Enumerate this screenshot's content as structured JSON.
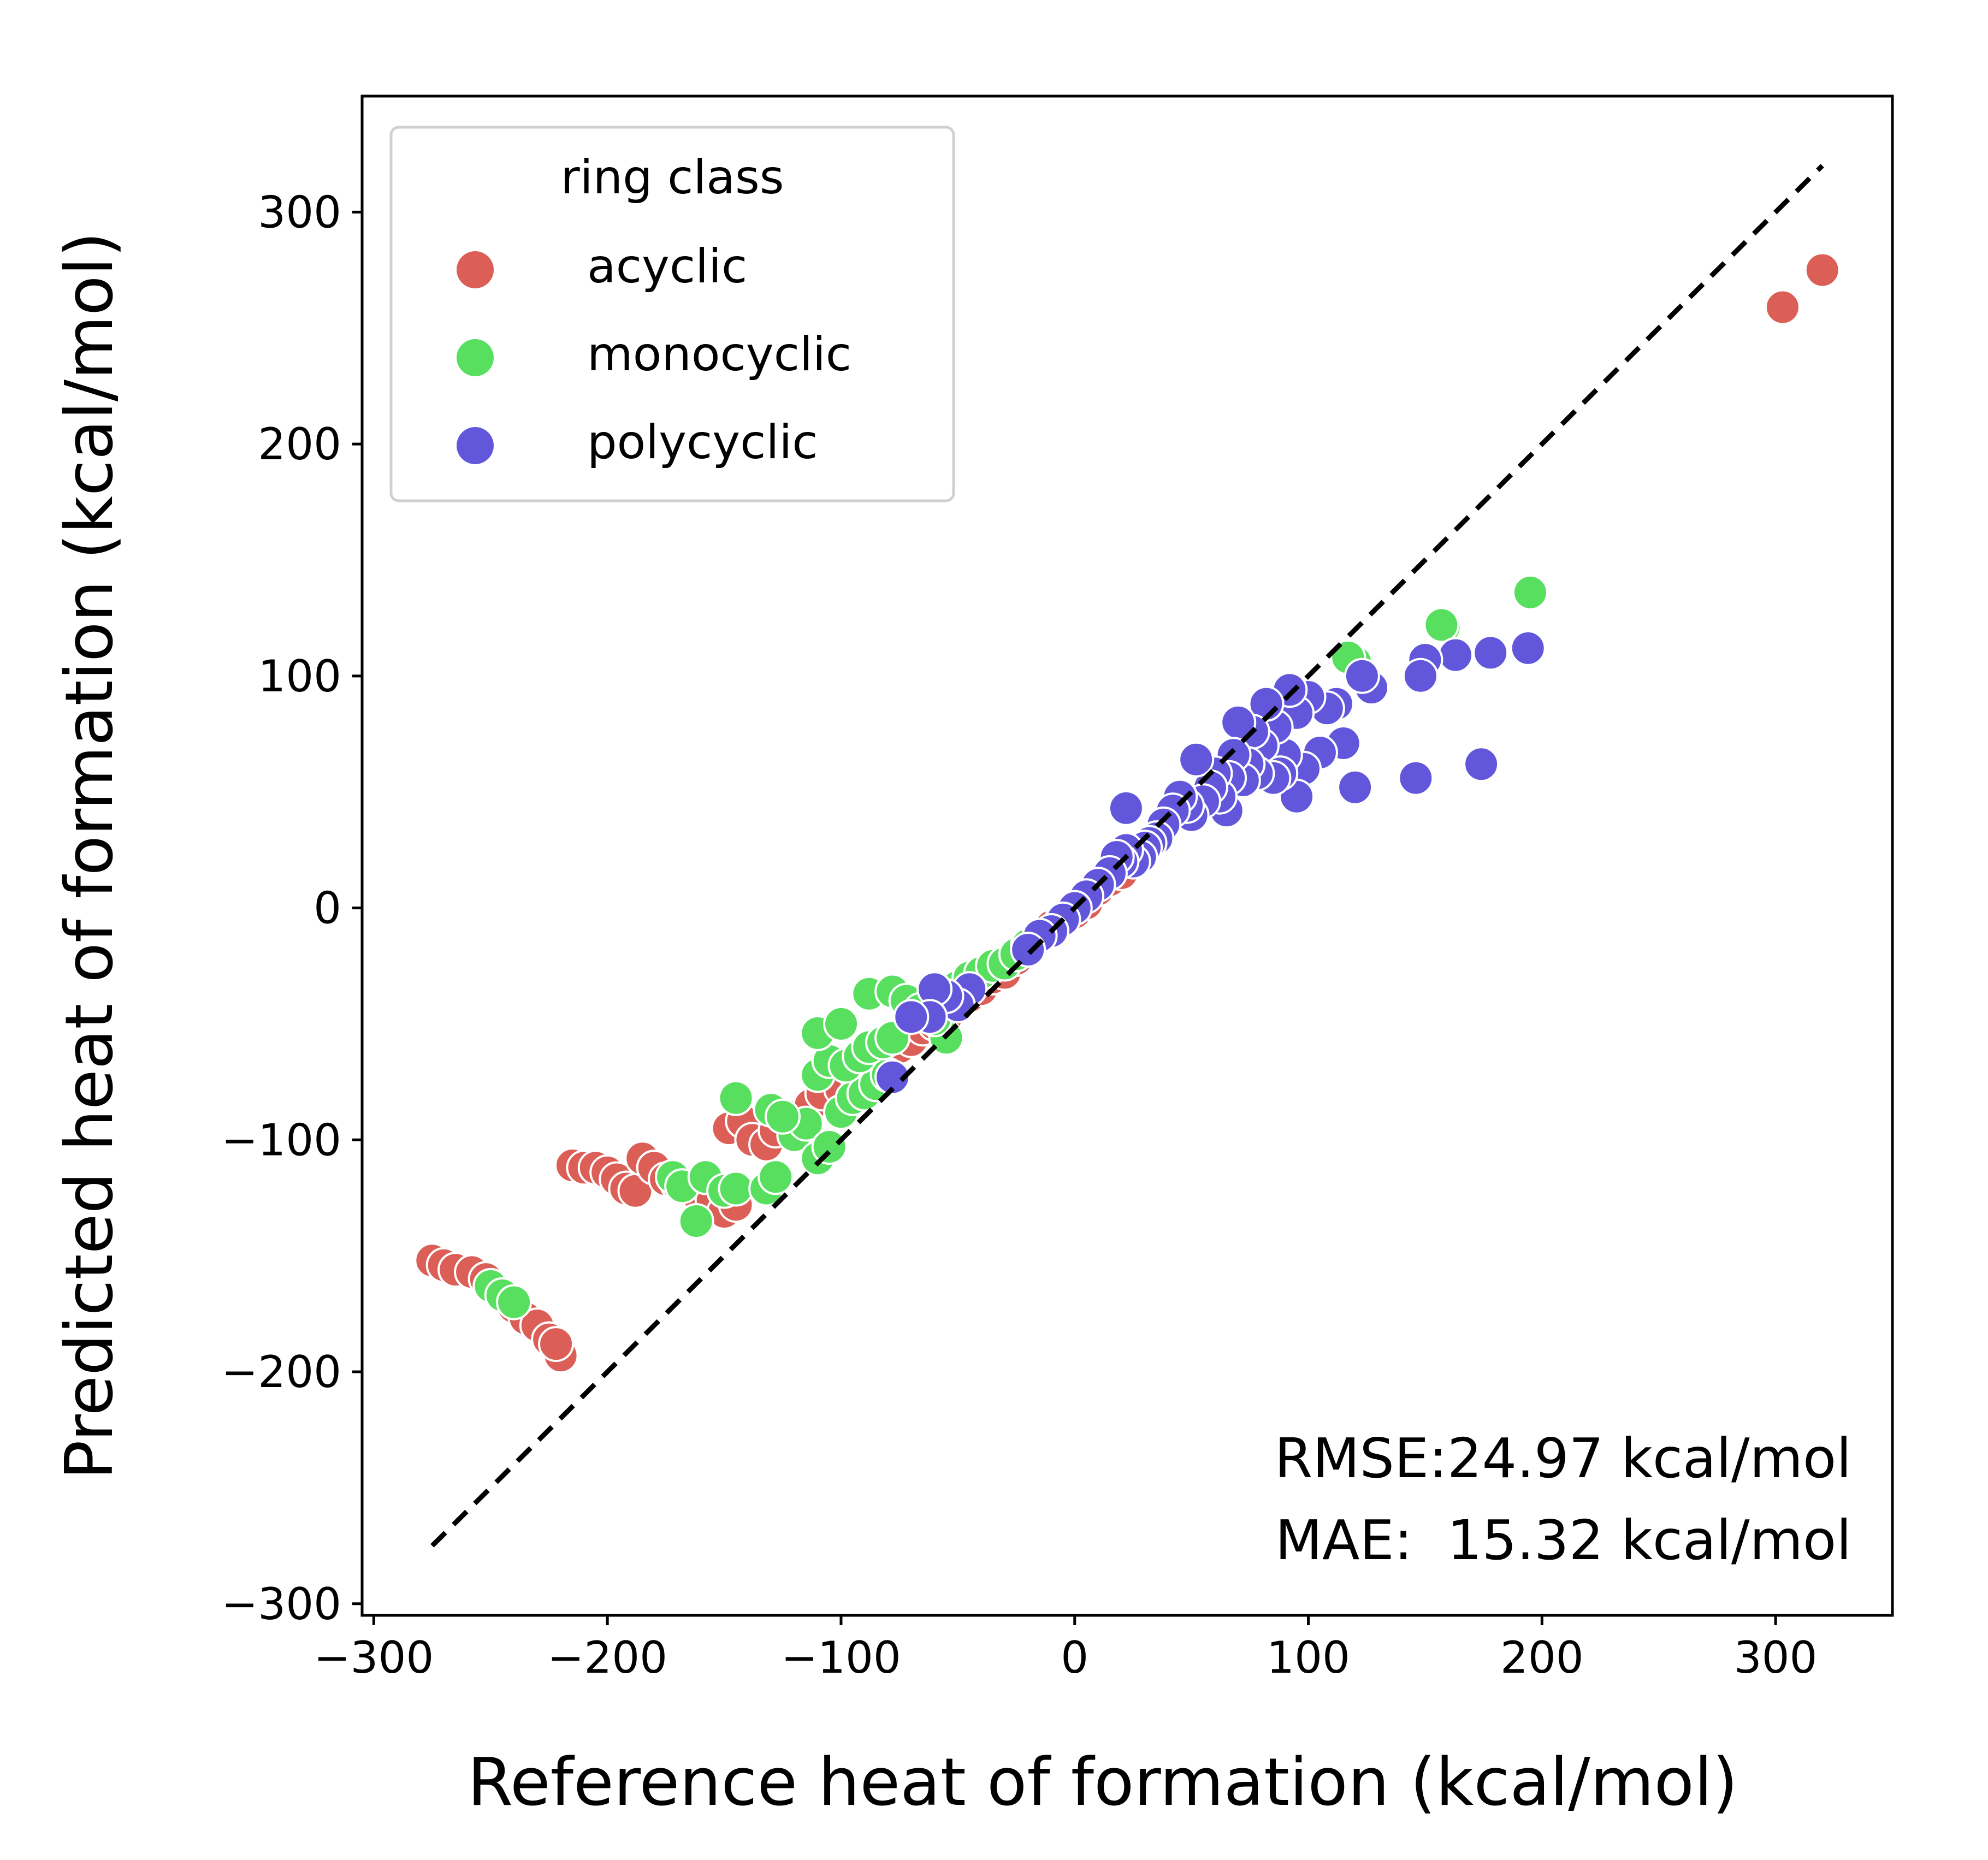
{
  "chart_data": {
    "type": "scatter",
    "title": "",
    "xlabel": "Reference heat of formation (kcal/mol)",
    "ylabel": "Predicted heat of formation (kcal/mol)",
    "xlim": [
      -305,
      350
    ],
    "ylim": [
      -305,
      350
    ],
    "xticks": [
      -300,
      -200,
      -100,
      0,
      100,
      200,
      300
    ],
    "yticks": [
      -300,
      -200,
      -100,
      0,
      100,
      200,
      300
    ],
    "xtick_labels": [
      "−300",
      "−200",
      "−100",
      "0",
      "100",
      "200",
      "300"
    ],
    "ytick_labels": [
      "−300",
      "−200",
      "−100",
      "0",
      "100",
      "200",
      "300"
    ],
    "grid": false,
    "reference_line": {
      "style": "dashed",
      "color": "#000000",
      "from": [
        -275,
        -275
      ],
      "to": [
        320,
        320
      ]
    },
    "legend": {
      "title": "ring class",
      "placement": "top-left"
    },
    "annotations": [
      "RMSE:24.97 kcal/mol",
      "MAE:  15.32 kcal/mol"
    ],
    "series": [
      {
        "name": "acyclic",
        "color": "#db5f57",
        "points": [
          [
            320,
            275
          ],
          [
            303,
            259
          ],
          [
            -275,
            -152
          ],
          [
            -270,
            -154
          ],
          [
            -265,
            -156
          ],
          [
            -258,
            -157
          ],
          [
            -252,
            -160
          ],
          [
            -246,
            -166
          ],
          [
            -240,
            -172
          ],
          [
            -235,
            -177
          ],
          [
            -230,
            -180
          ],
          [
            -225,
            -186
          ],
          [
            -220,
            -193
          ],
          [
            -222,
            -188
          ],
          [
            -215,
            -111
          ],
          [
            -210,
            -112
          ],
          [
            -205,
            -112
          ],
          [
            -200,
            -114
          ],
          [
            -196,
            -117
          ],
          [
            -192,
            -121
          ],
          [
            -188,
            -122
          ],
          [
            -185,
            -108
          ],
          [
            -180,
            -112
          ],
          [
            -175,
            -117
          ],
          [
            -170,
            -119
          ],
          [
            -165,
            -121
          ],
          [
            -160,
            -126
          ],
          [
            -155,
            -126
          ],
          [
            -150,
            -131
          ],
          [
            -145,
            -128
          ],
          [
            -148,
            -95
          ],
          [
            -142,
            -92
          ],
          [
            -138,
            -100
          ],
          [
            -132,
            -102
          ],
          [
            -128,
            -96
          ],
          [
            -122,
            -90
          ],
          [
            -118,
            -93
          ],
          [
            -113,
            -85
          ],
          [
            -108,
            -80
          ],
          [
            -100,
            -78
          ],
          [
            -95,
            -70
          ],
          [
            -90,
            -68
          ],
          [
            -85,
            -65
          ],
          [
            -80,
            -62
          ],
          [
            -75,
            -60
          ],
          [
            -70,
            -57
          ],
          [
            -65,
            -52
          ],
          [
            -60,
            -50
          ],
          [
            -55,
            -47
          ],
          [
            -50,
            -40
          ],
          [
            -45,
            -38
          ],
          [
            -40,
            -35
          ],
          [
            -35,
            -30
          ],
          [
            -30,
            -28
          ],
          [
            -25,
            -22
          ],
          [
            -20,
            -18
          ],
          [
            -15,
            -12
          ],
          [
            -10,
            -8
          ],
          [
            -5,
            -4
          ],
          [
            0,
            -2
          ],
          [
            5,
            2
          ],
          [
            10,
            8
          ],
          [
            15,
            12
          ],
          [
            20,
            15
          ],
          [
            25,
            20
          ]
        ]
      },
      {
        "name": "monocyclic",
        "color": "#59df5f",
        "points": [
          [
            195,
            136
          ],
          [
            158,
            121
          ],
          [
            157,
            122
          ],
          [
            120,
            106
          ],
          [
            117,
            108
          ],
          [
            -250,
            -163
          ],
          [
            -245,
            -167
          ],
          [
            -240,
            -170
          ],
          [
            -172,
            -116
          ],
          [
            -168,
            -120
          ],
          [
            -162,
            -135
          ],
          [
            -158,
            -116
          ],
          [
            -150,
            -122
          ],
          [
            -145,
            -121
          ],
          [
            -132,
            -121
          ],
          [
            -128,
            -116
          ],
          [
            -120,
            -98
          ],
          [
            -115,
            -93
          ],
          [
            -110,
            -108
          ],
          [
            -105,
            -103
          ],
          [
            -145,
            -82
          ],
          [
            -130,
            -87
          ],
          [
            -125,
            -90
          ],
          [
            -100,
            -88
          ],
          [
            -95,
            -82
          ],
          [
            -90,
            -80
          ],
          [
            -85,
            -76
          ],
          [
            -80,
            -72
          ],
          [
            -110,
            -72
          ],
          [
            -105,
            -66
          ],
          [
            -98,
            -68
          ],
          [
            -92,
            -64
          ],
          [
            -88,
            -60
          ],
          [
            -82,
            -58
          ],
          [
            -78,
            -56
          ],
          [
            -55,
            -56
          ],
          [
            -110,
            -54
          ],
          [
            -100,
            -50
          ],
          [
            -88,
            -37
          ],
          [
            -78,
            -36
          ],
          [
            -72,
            -40
          ],
          [
            -66,
            -44
          ],
          [
            -60,
            -48
          ],
          [
            -50,
            -34
          ],
          [
            -45,
            -30
          ],
          [
            -40,
            -28
          ],
          [
            -35,
            -25
          ],
          [
            -30,
            -24
          ],
          [
            -25,
            -20
          ],
          [
            -20,
            -16
          ],
          [
            -15,
            -12
          ]
        ]
      },
      {
        "name": "polycyclic",
        "color": "#6257db",
        "points": [
          [
            194,
            112
          ],
          [
            178,
            110
          ],
          [
            163,
            109
          ],
          [
            150,
            107
          ],
          [
            148,
            100
          ],
          [
            146,
            56
          ],
          [
            174,
            62
          ],
          [
            127,
            95
          ],
          [
            123,
            100
          ],
          [
            120,
            52
          ],
          [
            115,
            71
          ],
          [
            112,
            88
          ],
          [
            108,
            86
          ],
          [
            105,
            67
          ],
          [
            100,
            91
          ],
          [
            98,
            60
          ],
          [
            95,
            84
          ],
          [
            95,
            48
          ],
          [
            92,
            94
          ],
          [
            90,
            66
          ],
          [
            88,
            58
          ],
          [
            86,
            78
          ],
          [
            85,
            56
          ],
          [
            82,
            88
          ],
          [
            80,
            70
          ],
          [
            78,
            58
          ],
          [
            76,
            76
          ],
          [
            74,
            62
          ],
          [
            72,
            55
          ],
          [
            70,
            80
          ],
          [
            68,
            66
          ],
          [
            66,
            56
          ],
          [
            65,
            42
          ],
          [
            62,
            48
          ],
          [
            60,
            58
          ],
          [
            58,
            52
          ],
          [
            55,
            46
          ],
          [
            52,
            64
          ],
          [
            50,
            40
          ],
          [
            48,
            44
          ],
          [
            45,
            48
          ],
          [
            42,
            42
          ],
          [
            38,
            36
          ],
          [
            35,
            30
          ],
          [
            32,
            28
          ],
          [
            30,
            26
          ],
          [
            28,
            22
          ],
          [
            25,
            20
          ],
          [
            22,
            25
          ],
          [
            22,
            43
          ],
          [
            20,
            20
          ],
          [
            18,
            22
          ],
          [
            15,
            15
          ],
          [
            10,
            10
          ],
          [
            5,
            5
          ],
          [
            0,
            0
          ],
          [
            -5,
            -5
          ],
          [
            -10,
            -10
          ],
          [
            -15,
            -12
          ],
          [
            -20,
            -18
          ],
          [
            -45,
            -35
          ],
          [
            -50,
            -42
          ],
          [
            -55,
            -38
          ],
          [
            -60,
            -35
          ],
          [
            -62,
            -47
          ],
          [
            -70,
            -47
          ],
          [
            -78,
            -73
          ]
        ]
      }
    ]
  }
}
